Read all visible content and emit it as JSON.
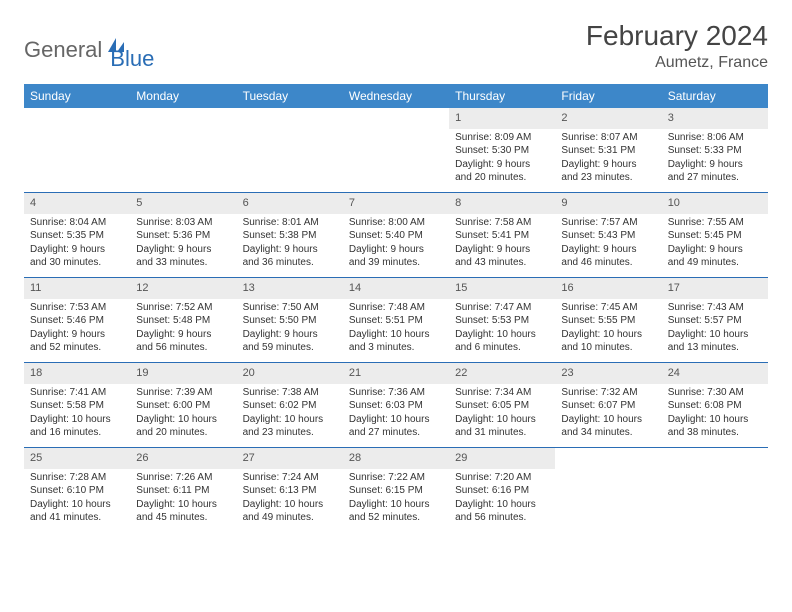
{
  "brand": {
    "part1": "General",
    "part2": "Blue"
  },
  "title": "February 2024",
  "location": "Aumetz, France",
  "day_headers": [
    "Sunday",
    "Monday",
    "Tuesday",
    "Wednesday",
    "Thursday",
    "Friday",
    "Saturday"
  ],
  "colors": {
    "header_bg": "#3d87c9",
    "rule": "#2a6db5",
    "daynum_bg": "#ececec",
    "text": "#333333"
  },
  "weeks": [
    [
      null,
      null,
      null,
      null,
      {
        "n": "1",
        "sr": "Sunrise: 8:09 AM",
        "ss": "Sunset: 5:30 PM",
        "dl": "Daylight: 9 hours and 20 minutes."
      },
      {
        "n": "2",
        "sr": "Sunrise: 8:07 AM",
        "ss": "Sunset: 5:31 PM",
        "dl": "Daylight: 9 hours and 23 minutes."
      },
      {
        "n": "3",
        "sr": "Sunrise: 8:06 AM",
        "ss": "Sunset: 5:33 PM",
        "dl": "Daylight: 9 hours and 27 minutes."
      }
    ],
    [
      {
        "n": "4",
        "sr": "Sunrise: 8:04 AM",
        "ss": "Sunset: 5:35 PM",
        "dl": "Daylight: 9 hours and 30 minutes."
      },
      {
        "n": "5",
        "sr": "Sunrise: 8:03 AM",
        "ss": "Sunset: 5:36 PM",
        "dl": "Daylight: 9 hours and 33 minutes."
      },
      {
        "n": "6",
        "sr": "Sunrise: 8:01 AM",
        "ss": "Sunset: 5:38 PM",
        "dl": "Daylight: 9 hours and 36 minutes."
      },
      {
        "n": "7",
        "sr": "Sunrise: 8:00 AM",
        "ss": "Sunset: 5:40 PM",
        "dl": "Daylight: 9 hours and 39 minutes."
      },
      {
        "n": "8",
        "sr": "Sunrise: 7:58 AM",
        "ss": "Sunset: 5:41 PM",
        "dl": "Daylight: 9 hours and 43 minutes."
      },
      {
        "n": "9",
        "sr": "Sunrise: 7:57 AM",
        "ss": "Sunset: 5:43 PM",
        "dl": "Daylight: 9 hours and 46 minutes."
      },
      {
        "n": "10",
        "sr": "Sunrise: 7:55 AM",
        "ss": "Sunset: 5:45 PM",
        "dl": "Daylight: 9 hours and 49 minutes."
      }
    ],
    [
      {
        "n": "11",
        "sr": "Sunrise: 7:53 AM",
        "ss": "Sunset: 5:46 PM",
        "dl": "Daylight: 9 hours and 52 minutes."
      },
      {
        "n": "12",
        "sr": "Sunrise: 7:52 AM",
        "ss": "Sunset: 5:48 PM",
        "dl": "Daylight: 9 hours and 56 minutes."
      },
      {
        "n": "13",
        "sr": "Sunrise: 7:50 AM",
        "ss": "Sunset: 5:50 PM",
        "dl": "Daylight: 9 hours and 59 minutes."
      },
      {
        "n": "14",
        "sr": "Sunrise: 7:48 AM",
        "ss": "Sunset: 5:51 PM",
        "dl": "Daylight: 10 hours and 3 minutes."
      },
      {
        "n": "15",
        "sr": "Sunrise: 7:47 AM",
        "ss": "Sunset: 5:53 PM",
        "dl": "Daylight: 10 hours and 6 minutes."
      },
      {
        "n": "16",
        "sr": "Sunrise: 7:45 AM",
        "ss": "Sunset: 5:55 PM",
        "dl": "Daylight: 10 hours and 10 minutes."
      },
      {
        "n": "17",
        "sr": "Sunrise: 7:43 AM",
        "ss": "Sunset: 5:57 PM",
        "dl": "Daylight: 10 hours and 13 minutes."
      }
    ],
    [
      {
        "n": "18",
        "sr": "Sunrise: 7:41 AM",
        "ss": "Sunset: 5:58 PM",
        "dl": "Daylight: 10 hours and 16 minutes."
      },
      {
        "n": "19",
        "sr": "Sunrise: 7:39 AM",
        "ss": "Sunset: 6:00 PM",
        "dl": "Daylight: 10 hours and 20 minutes."
      },
      {
        "n": "20",
        "sr": "Sunrise: 7:38 AM",
        "ss": "Sunset: 6:02 PM",
        "dl": "Daylight: 10 hours and 23 minutes."
      },
      {
        "n": "21",
        "sr": "Sunrise: 7:36 AM",
        "ss": "Sunset: 6:03 PM",
        "dl": "Daylight: 10 hours and 27 minutes."
      },
      {
        "n": "22",
        "sr": "Sunrise: 7:34 AM",
        "ss": "Sunset: 6:05 PM",
        "dl": "Daylight: 10 hours and 31 minutes."
      },
      {
        "n": "23",
        "sr": "Sunrise: 7:32 AM",
        "ss": "Sunset: 6:07 PM",
        "dl": "Daylight: 10 hours and 34 minutes."
      },
      {
        "n": "24",
        "sr": "Sunrise: 7:30 AM",
        "ss": "Sunset: 6:08 PM",
        "dl": "Daylight: 10 hours and 38 minutes."
      }
    ],
    [
      {
        "n": "25",
        "sr": "Sunrise: 7:28 AM",
        "ss": "Sunset: 6:10 PM",
        "dl": "Daylight: 10 hours and 41 minutes."
      },
      {
        "n": "26",
        "sr": "Sunrise: 7:26 AM",
        "ss": "Sunset: 6:11 PM",
        "dl": "Daylight: 10 hours and 45 minutes."
      },
      {
        "n": "27",
        "sr": "Sunrise: 7:24 AM",
        "ss": "Sunset: 6:13 PM",
        "dl": "Daylight: 10 hours and 49 minutes."
      },
      {
        "n": "28",
        "sr": "Sunrise: 7:22 AM",
        "ss": "Sunset: 6:15 PM",
        "dl": "Daylight: 10 hours and 52 minutes."
      },
      {
        "n": "29",
        "sr": "Sunrise: 7:20 AM",
        "ss": "Sunset: 6:16 PM",
        "dl": "Daylight: 10 hours and 56 minutes."
      },
      null,
      null
    ]
  ]
}
